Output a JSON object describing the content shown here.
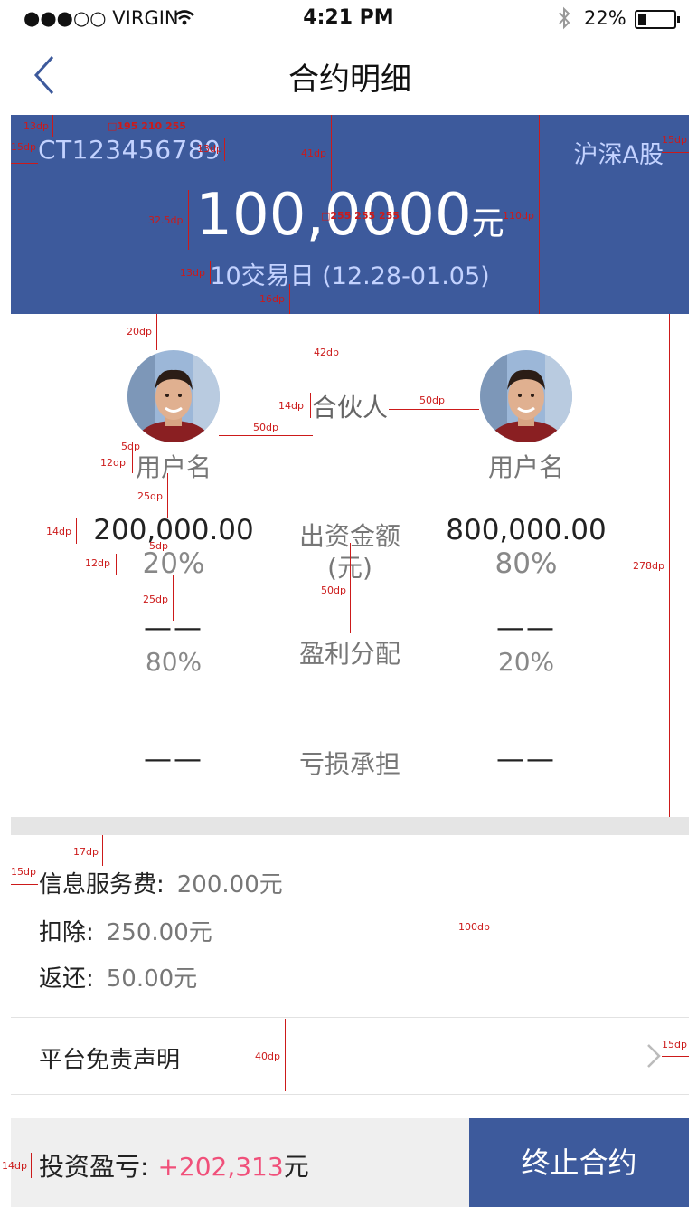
{
  "status_bar": {
    "carrier": "●●●○○ VIRGIN",
    "time": "4:21 PM",
    "battery": "22%"
  },
  "nav": {
    "title": "合约明细"
  },
  "contract": {
    "code": "CT123456789",
    "market": "沪深A股",
    "amount": "100,0000",
    "amount_unit": "元",
    "period": "10交易日 (12.28-01.05)"
  },
  "partners": {
    "center_title": "合伙人",
    "left": {
      "name": "用户名",
      "investment": "200,000.00",
      "investment_pct": "20%",
      "profit": "——",
      "profit_pct": "80%",
      "loss": "——"
    },
    "right": {
      "name": "用户名",
      "investment": "800,000.00",
      "investment_pct": "80%",
      "profit": "——",
      "profit_pct": "20%",
      "loss": "——"
    },
    "labels": {
      "investment": "出资金额",
      "investment_unit": "(元)",
      "profit": "盈利分配",
      "loss": "亏损承担"
    }
  },
  "fees": {
    "service_fee_label": "信息服务费:",
    "service_fee_value": "200.00元",
    "deduct_label": "扣除:",
    "deduct_value": "250.00元",
    "refund_label": "返还:",
    "refund_value": "50.00元"
  },
  "disclaimer": {
    "label": "平台免责声明"
  },
  "footer": {
    "pnl_label": "投资盈亏:",
    "pnl_value": "+202,313",
    "pnl_unit": "元",
    "terminate_label": "终止合约"
  },
  "colors": {
    "brand_blue": "#3d5a9c",
    "header_text": "#c3d2ff",
    "profit_red": "#f0507a"
  },
  "annotations": {
    "a13_top": "13dp",
    "a15_left": "15dp",
    "a13_code": "13dp",
    "a41": "41dp",
    "a_color_code": "□195 210 255",
    "a15_right": "15dp",
    "a325": "32.5dp",
    "a_color_amount": "□255 255 255",
    "a110": "110dp",
    "a13_period": "13dp",
    "a16": "16dp",
    "a20": "20dp",
    "a42": "42dp",
    "a14_partner": "14dp",
    "a50_partner": "50dp",
    "a50_avatar": "50dp",
    "a5_name": "5dp",
    "a12_name": "12dp",
    "a25_a": "25dp",
    "a14_num": "14dp",
    "a5_pct": "5dp",
    "a12_pct": "12dp",
    "a25_b": "25dp",
    "a50_mid": "50dp",
    "a278": "278dp",
    "a17": "17dp",
    "a15_fee": "15dp",
    "a100": "100dp",
    "a40": "40dp",
    "a15_chev": "15dp",
    "a14_footer": "14dp"
  }
}
